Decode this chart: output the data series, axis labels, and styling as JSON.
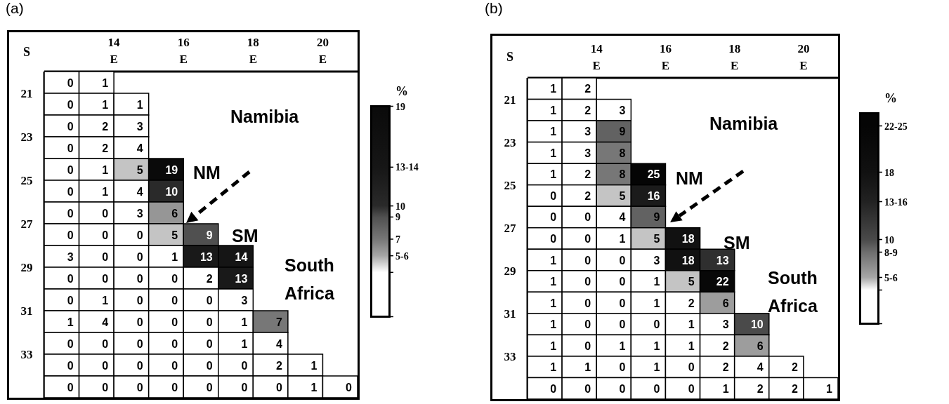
{
  "chart_data": [
    {
      "type": "heatmap",
      "title": "(a)",
      "ylabel": "S",
      "xlim": [
        12,
        21
      ],
      "xticks": [
        {
          "value": 14,
          "label": "14 E"
        },
        {
          "value": 16,
          "label": "16 E"
        },
        {
          "value": 18,
          "label": "18 E"
        },
        {
          "value": 20,
          "label": "20 E"
        }
      ],
      "ylim": [
        35,
        20
      ],
      "yticks": [
        21,
        23,
        25,
        27,
        29,
        31,
        33
      ],
      "cells": [
        [
          0,
          1,
          null,
          null,
          null,
          null,
          null,
          null,
          null
        ],
        [
          0,
          1,
          1,
          null,
          null,
          null,
          null,
          null,
          null
        ],
        [
          0,
          2,
          3,
          null,
          null,
          null,
          null,
          null,
          null
        ],
        [
          0,
          2,
          4,
          null,
          null,
          null,
          null,
          null,
          null
        ],
        [
          0,
          1,
          5,
          19,
          null,
          null,
          null,
          null,
          null
        ],
        [
          0,
          1,
          4,
          10,
          null,
          null,
          null,
          null,
          null
        ],
        [
          0,
          0,
          3,
          6,
          null,
          null,
          null,
          null,
          null
        ],
        [
          0,
          0,
          0,
          5,
          9,
          null,
          null,
          null,
          null
        ],
        [
          3,
          0,
          0,
          1,
          13,
          14,
          null,
          null,
          null
        ],
        [
          0,
          0,
          0,
          0,
          2,
          13,
          null,
          null,
          null
        ],
        [
          0,
          1,
          0,
          0,
          0,
          3,
          null,
          null,
          null
        ],
        [
          1,
          4,
          0,
          0,
          0,
          1,
          7,
          null,
          null
        ],
        [
          0,
          0,
          0,
          0,
          0,
          1,
          4,
          null,
          null
        ],
        [
          0,
          0,
          0,
          0,
          0,
          0,
          2,
          1,
          null
        ],
        [
          0,
          0,
          0,
          0,
          0,
          0,
          0,
          1,
          0
        ]
      ],
      "data_labels": true,
      "clabel": "%",
      "clim": [
        0,
        19
      ],
      "cticks": [
        19,
        {
          "value": 13.5,
          "label": "13-14"
        },
        10,
        9,
        7,
        {
          "value": 5.5,
          "label": "5-6"
        },
        {
          "value": 4,
          "label": null
        },
        {
          "value": 0,
          "label": null
        }
      ],
      "colors": [
        "#0a0a0a",
        "#161616",
        "#2a2a2a",
        "#505050",
        "#777777",
        "#a6a6a6",
        "#ffffff",
        "#ffffff"
      ],
      "annotations": [
        "Namibia",
        "NM",
        "SM",
        "South Africa"
      ]
    },
    {
      "type": "heatmap",
      "title": "(b)",
      "ylabel": "S",
      "xlim": [
        12,
        21
      ],
      "xticks": [
        {
          "value": 14,
          "label": "14 E"
        },
        {
          "value": 16,
          "label": "16 E"
        },
        {
          "value": 18,
          "label": "18 E"
        },
        {
          "value": 20,
          "label": "20 E"
        }
      ],
      "ylim": [
        35,
        20
      ],
      "yticks": [
        21,
        23,
        25,
        27,
        29,
        31,
        33
      ],
      "cells": [
        [
          1,
          2,
          null,
          null,
          null,
          null,
          null,
          null,
          null
        ],
        [
          1,
          2,
          3,
          null,
          null,
          null,
          null,
          null,
          null
        ],
        [
          1,
          3,
          9,
          null,
          null,
          null,
          null,
          null,
          null
        ],
        [
          1,
          3,
          8,
          null,
          null,
          null,
          null,
          null,
          null
        ],
        [
          1,
          2,
          8,
          25,
          null,
          null,
          null,
          null,
          null
        ],
        [
          0,
          2,
          5,
          16,
          null,
          null,
          null,
          null,
          null
        ],
        [
          0,
          0,
          4,
          9,
          null,
          null,
          null,
          null,
          null
        ],
        [
          0,
          0,
          1,
          5,
          18,
          null,
          null,
          null,
          null
        ],
        [
          1,
          0,
          0,
          3,
          18,
          13,
          null,
          null,
          null
        ],
        [
          1,
          0,
          0,
          1,
          5,
          22,
          null,
          null,
          null
        ],
        [
          1,
          0,
          0,
          1,
          2,
          6,
          null,
          null,
          null
        ],
        [
          1,
          0,
          0,
          0,
          1,
          3,
          10,
          null,
          null
        ],
        [
          1,
          0,
          1,
          1,
          1,
          2,
          6,
          null,
          null
        ],
        [
          1,
          1,
          0,
          1,
          0,
          2,
          4,
          2,
          null
        ],
        [
          0,
          0,
          0,
          0,
          0,
          1,
          2,
          2,
          1
        ]
      ],
      "data_labels": true,
      "clabel": "%",
      "clim": [
        0,
        25
      ],
      "cticks": [
        {
          "value": 23.5,
          "label": "22-25"
        },
        18,
        {
          "value": 14.5,
          "label": "13-16"
        },
        10,
        {
          "value": 8.5,
          "label": "8-9"
        },
        {
          "value": 5.5,
          "label": "5-6"
        },
        {
          "value": 4,
          "label": null
        },
        {
          "value": 0,
          "label": null
        }
      ],
      "colors": [
        "#050505",
        "#111111",
        "#222222",
        "#4a4a4a",
        "#6e6e6e",
        "#a6a6a6",
        "#ffffff",
        "#ffffff"
      ],
      "annotations": [
        "Namibia",
        "NM",
        "SM",
        "South Africa"
      ]
    }
  ]
}
